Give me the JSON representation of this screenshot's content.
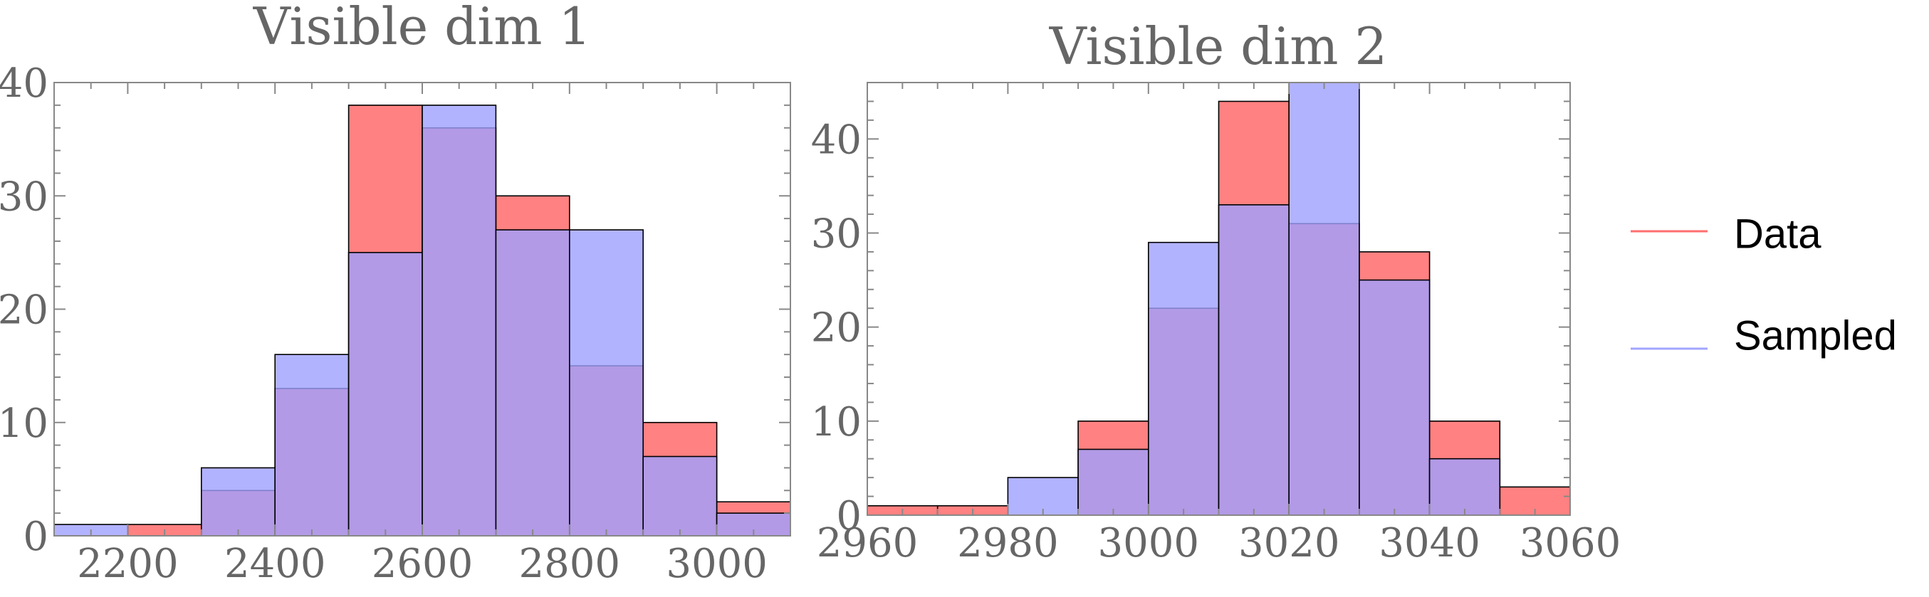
{
  "colors": {
    "data": "#ff6f6f",
    "sampled": "#9fa0ff",
    "data_line": "#ff6f6f",
    "sampled_line": "#a3a5ff"
  },
  "legend": {
    "placement": "right",
    "items": [
      {
        "label": "Data"
      },
      {
        "label": "Sampled"
      }
    ]
  },
  "chart_data": [
    {
      "type": "bar",
      "title": "Visible dim 1",
      "xlim": [
        2100,
        3100
      ],
      "ylim": [
        0,
        40
      ],
      "xticks": [
        2200,
        2400,
        2600,
        2800,
        3000
      ],
      "yticks": [
        0,
        10,
        20,
        30,
        40
      ],
      "bin_edges": [
        2100,
        2200,
        2300,
        2400,
        2500,
        2600,
        2700,
        2800,
        2900,
        3000,
        3100
      ],
      "series": [
        {
          "name": "Data",
          "values": [
            0,
            1,
            4,
            13,
            38,
            36,
            30,
            15,
            10,
            3
          ]
        },
        {
          "name": "Sampled",
          "values": [
            1,
            0,
            6,
            16,
            25,
            38,
            27,
            27,
            7,
            2
          ]
        }
      ]
    },
    {
      "type": "bar",
      "title": "Visible dim 2",
      "xlim": [
        2960,
        3060
      ],
      "ylim": [
        0,
        46
      ],
      "xticks": [
        2960,
        2980,
        3000,
        3020,
        3040,
        3060
      ],
      "yticks": [
        0,
        10,
        20,
        30,
        40
      ],
      "bin_edges": [
        2960,
        2970,
        2980,
        2990,
        3000,
        3010,
        3020,
        3030,
        3040,
        3050,
        3060
      ],
      "series": [
        {
          "name": "Data",
          "values": [
            1,
            1,
            0,
            10,
            22,
            44,
            31,
            28,
            10,
            3
          ]
        },
        {
          "name": "Sampled",
          "values": [
            0,
            0,
            4,
            7,
            29,
            33,
            46,
            25,
            6,
            0
          ]
        }
      ]
    }
  ]
}
